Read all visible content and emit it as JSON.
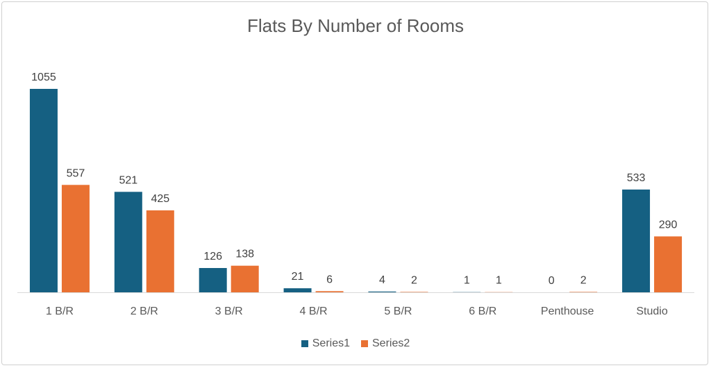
{
  "colors": {
    "series1": "#156082",
    "series2": "#e97132",
    "axis": "#d9d9d9"
  },
  "chart_data": {
    "type": "bar",
    "title": "Flats By Number of Rooms",
    "categories": [
      "1 B/R",
      "2 B/R",
      "3 B/R",
      "4 B/R",
      "5 B/R",
      "6 B/R",
      "Penthouse",
      "Studio"
    ],
    "series": [
      {
        "name": "Series1",
        "values": [
          1055,
          521,
          126,
          21,
          4,
          1,
          0,
          533
        ]
      },
      {
        "name": "Series2",
        "values": [
          557,
          425,
          138,
          6,
          2,
          1,
          2,
          290
        ]
      }
    ],
    "xlabel": "",
    "ylabel": "",
    "ylim": [
      0,
      1055
    ],
    "grid": false,
    "legend": "bottom"
  }
}
